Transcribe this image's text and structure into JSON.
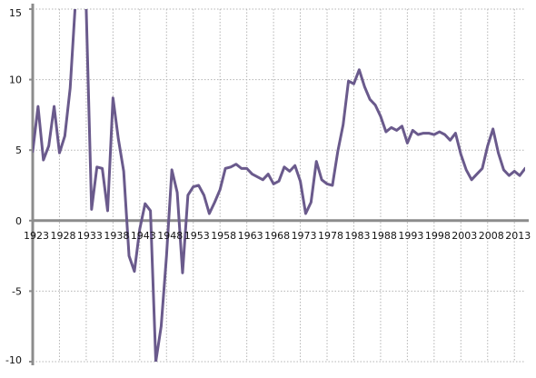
{
  "chart_data": {
    "type": "line",
    "title": "",
    "xlabel": "",
    "ylabel": "",
    "x": [
      1923,
      1924,
      1925,
      1926,
      1927,
      1928,
      1929,
      1930,
      1931,
      1932,
      1933,
      1934,
      1935,
      1936,
      1937,
      1938,
      1939,
      1940,
      1941,
      1942,
      1943,
      1944,
      1945,
      1946,
      1947,
      1948,
      1949,
      1950,
      1951,
      1952,
      1953,
      1954,
      1955,
      1956,
      1957,
      1958,
      1959,
      1960,
      1961,
      1962,
      1963,
      1964,
      1965,
      1966,
      1967,
      1968,
      1969,
      1970,
      1971,
      1972,
      1973,
      1974,
      1975,
      1976,
      1977,
      1978,
      1979,
      1980,
      1981,
      1982,
      1983,
      1984,
      1985,
      1986,
      1987,
      1988,
      1989,
      1990,
      1991,
      1992,
      1993,
      1994,
      1995,
      1996,
      1997,
      1998,
      1999,
      2000,
      2001,
      2002,
      2003,
      2004,
      2005,
      2006,
      2007,
      2008,
      2009,
      2010,
      2011,
      2012,
      2013,
      2014,
      2015
    ],
    "series": [
      {
        "name": "",
        "values": [
          4.9,
          8.1,
          4.3,
          5.3,
          8.1,
          4.8,
          6.0,
          9.4,
          15.6,
          15.6,
          15.0,
          0.8,
          3.8,
          3.7,
          0.7,
          8.7,
          5.8,
          3.5,
          -2.5,
          -3.6,
          -0.6,
          1.2,
          0.7,
          -10.0,
          -7.5,
          -2.5,
          3.6,
          2.0,
          -3.7,
          1.8,
          2.4,
          2.5,
          1.8,
          0.5,
          1.3,
          2.2,
          3.7,
          3.8,
          4.0,
          3.7,
          3.7,
          3.3,
          3.1,
          2.9,
          3.3,
          2.6,
          2.8,
          3.8,
          3.5,
          3.9,
          2.8,
          0.5,
          1.3,
          4.2,
          2.9,
          2.6,
          2.5,
          4.9,
          6.8,
          9.9,
          9.7,
          10.7,
          9.5,
          8.6,
          8.2,
          7.4,
          6.3,
          6.6,
          6.4,
          6.7,
          5.5,
          6.4,
          6.1,
          6.2,
          6.2,
          6.1,
          6.3,
          6.1,
          5.7,
          6.2,
          4.7,
          3.6,
          2.9,
          3.3,
          3.7,
          5.3,
          6.5,
          4.8,
          3.6,
          3.2,
          3.5,
          3.2,
          3.7
        ]
      }
    ],
    "ylim": [
      -10,
      15
    ],
    "xlim": [
      1923,
      2015
    ],
    "yticks": [
      -10,
      -5,
      0,
      5,
      10,
      15
    ],
    "ytick_labels": [
      "-10",
      "-5",
      "0",
      "5",
      "10",
      "15"
    ],
    "xticks": [
      1923,
      1928,
      1933,
      1938,
      1943,
      1948,
      1953,
      1958,
      1963,
      1968,
      1973,
      1978,
      1983,
      1988,
      1993,
      1998,
      2003,
      2008,
      2013
    ],
    "xtick_labels": [
      "1923",
      "1928",
      "1933",
      "1938",
      "1943",
      "1948",
      "1953",
      "1958",
      "1963",
      "1968",
      "1973",
      "1978",
      "1983",
      "1988",
      "1993",
      "1998",
      "2003",
      "2008",
      "2013"
    ],
    "grid": true,
    "legend": "none",
    "colors": {
      "line": "#6a5a8c",
      "axis": "#8c8c8c",
      "grid": "#b4b4b4"
    }
  }
}
